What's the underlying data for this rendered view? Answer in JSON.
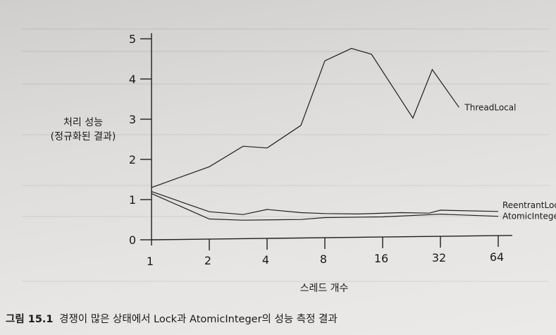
{
  "caption": {
    "figure_number": "그림 15.1",
    "text": "경쟁이 많은 상태에서 Lock과 AtomicInteger의 성능 측정 결과"
  },
  "chart_data": {
    "type": "line",
    "xlabel": "스레드 개수",
    "ylabel": [
      "처리 성능",
      "(정규화된 결과)"
    ],
    "x_scale": "log2",
    "x_ticks": [
      1,
      2,
      4,
      8,
      16,
      32,
      64
    ],
    "x_tick_labels": [
      "1",
      "2",
      "4",
      "8",
      "16",
      "32",
      "64"
    ],
    "y_ticks": [
      0,
      1,
      2,
      3,
      4,
      5
    ],
    "y_tick_labels": [
      "0",
      "1",
      "2",
      "3",
      "4",
      "5"
    ],
    "xlim": [
      1,
      64
    ],
    "ylim": [
      0,
      5
    ],
    "grid": false,
    "legend": "inline labels at line ends",
    "series": [
      {
        "name": "ThreadLocal",
        "points": [
          [
            1,
            1.3
          ],
          [
            2,
            1.8
          ],
          [
            3,
            2.3
          ],
          [
            4,
            2.25
          ],
          [
            6,
            2.8
          ],
          [
            8,
            4.4
          ],
          [
            11,
            4.7
          ],
          [
            14,
            4.55
          ],
          [
            23,
            2.95
          ],
          [
            29,
            4.15
          ],
          [
            40,
            3.2
          ]
        ]
      },
      {
        "name": "ReentrantLock",
        "points": [
          [
            1,
            1.2
          ],
          [
            2,
            0.68
          ],
          [
            3,
            0.6
          ],
          [
            4,
            0.72
          ],
          [
            6,
            0.63
          ],
          [
            8,
            0.6
          ],
          [
            12,
            0.58
          ],
          [
            20,
            0.6
          ],
          [
            28,
            0.58
          ],
          [
            32,
            0.65
          ],
          [
            64,
            0.6
          ]
        ]
      },
      {
        "name": "AtomicInteger",
        "points": [
          [
            1,
            1.15
          ],
          [
            2,
            0.5
          ],
          [
            3,
            0.46
          ],
          [
            6,
            0.46
          ],
          [
            8,
            0.5
          ],
          [
            16,
            0.5
          ],
          [
            32,
            0.55
          ],
          [
            64,
            0.48
          ]
        ]
      }
    ]
  }
}
